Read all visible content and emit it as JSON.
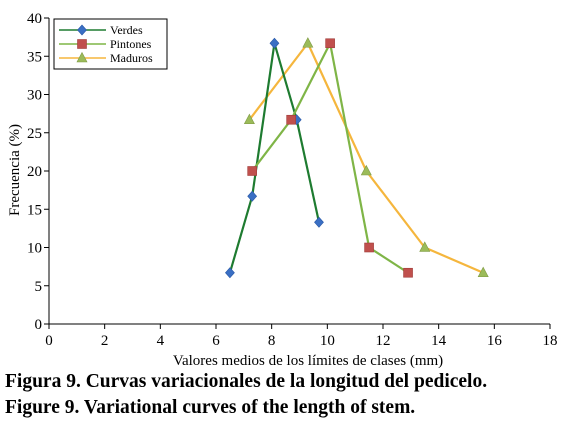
{
  "caption": {
    "line_es": "Figura 9. Curvas variacionales de la longitud del pedicelo.",
    "line_en": "Figure 9. Variational curves of the length of stem."
  },
  "chart_data": {
    "type": "line",
    "title": "",
    "xlabel": "Valores medios de los límites de clases (mm)",
    "ylabel": "Frecuencia (%)",
    "xlim": [
      0,
      18
    ],
    "ylim": [
      0,
      40
    ],
    "xticks": [
      0,
      2,
      4,
      6,
      8,
      10,
      12,
      14,
      16,
      18
    ],
    "yticks": [
      0,
      5,
      10,
      15,
      20,
      25,
      30,
      35,
      40
    ],
    "grid": false,
    "legend_position": "top-left",
    "series": [
      {
        "name": "Verdes",
        "color": "#1e7b30",
        "marker": "diamond",
        "marker_color": "#3a6fc4",
        "x": [
          6.5,
          7.3,
          8.1,
          8.9,
          9.7
        ],
        "y": [
          6.7,
          16.7,
          36.7,
          26.7,
          13.3
        ]
      },
      {
        "name": "Pintones",
        "color": "#7fb547",
        "marker": "square",
        "marker_color": "#c0504d",
        "x": [
          7.3,
          8.7,
          10.1,
          11.5,
          12.9
        ],
        "y": [
          20.0,
          26.7,
          36.7,
          10.0,
          6.7
        ]
      },
      {
        "name": "Maduros",
        "color": "#f5b63d",
        "marker": "triangle",
        "marker_color": "#9bbb59",
        "x": [
          7.2,
          9.3,
          11.4,
          13.5,
          15.6
        ],
        "y": [
          26.7,
          36.7,
          20.0,
          10.0,
          6.7
        ]
      }
    ]
  }
}
